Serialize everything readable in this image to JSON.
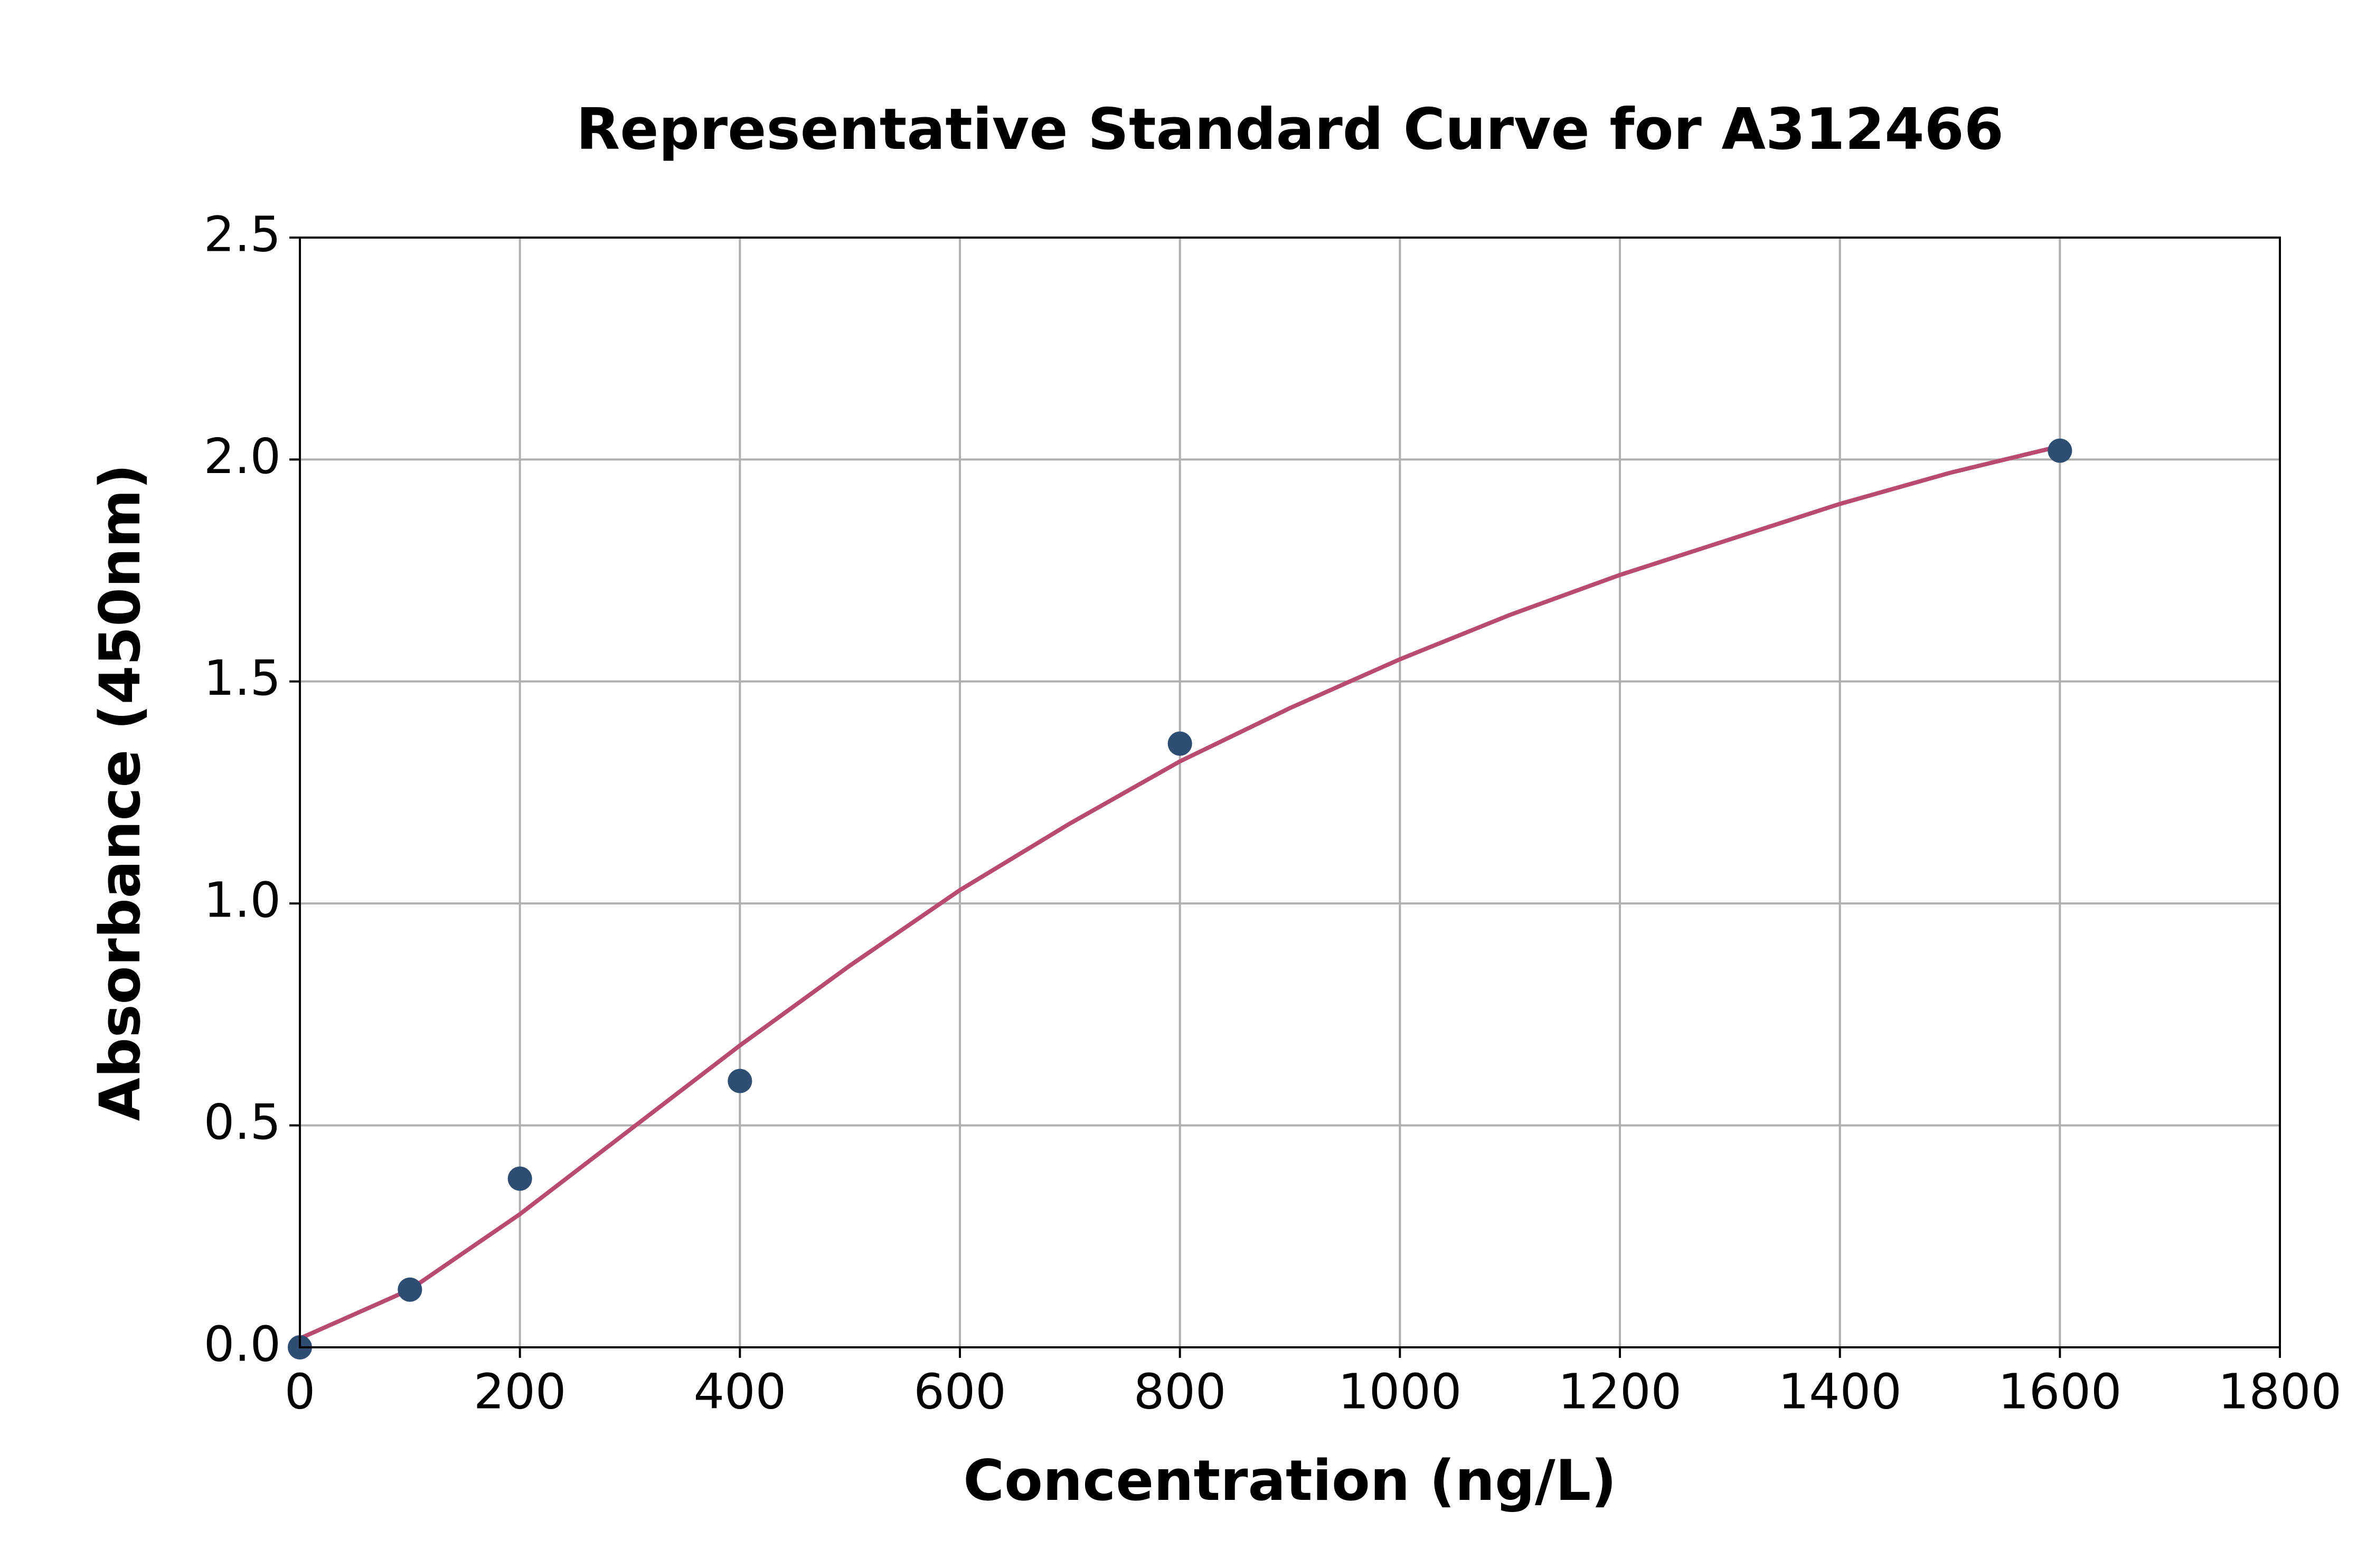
{
  "chart_data": {
    "type": "scatter",
    "title": "Representative Standard Curve for A312466",
    "x_label": "Concentration (ng/L)",
    "y_label": "Absorbance (450nm)",
    "xlim": [
      0,
      1800
    ],
    "ylim": [
      0,
      2.5
    ],
    "xticks": [
      0,
      200,
      400,
      600,
      800,
      1000,
      1200,
      1400,
      1600,
      1800
    ],
    "yticks": [
      {
        "value": 0,
        "label": "0.0"
      },
      {
        "value": 0.5,
        "label": "0.5"
      },
      {
        "value": 1,
        "label": "1.0"
      },
      {
        "value": 1.5,
        "label": "1.5"
      },
      {
        "value": 2,
        "label": "2.0"
      },
      {
        "value": 2.5,
        "label": "2.5"
      }
    ],
    "grid": true,
    "series": [
      {
        "type": "scatter",
        "color": "#2d4e72",
        "x": [
          0,
          100,
          200,
          400,
          800,
          1600
        ],
        "values": [
          0,
          0.13,
          0.38,
          0.6,
          1.36,
          2.02
        ]
      },
      {
        "type": "line",
        "color": "#b94b72",
        "x": [
          0,
          100,
          200,
          300,
          400,
          500,
          600,
          700,
          800,
          900,
          1000,
          1100,
          1200,
          1300,
          1400,
          1500,
          1600
        ],
        "values": [
          0.02,
          0.13,
          0.3,
          0.49,
          0.68,
          0.86,
          1.03,
          1.18,
          1.32,
          1.44,
          1.55,
          1.65,
          1.74,
          1.82,
          1.9,
          1.97,
          2.03
        ]
      }
    ]
  }
}
